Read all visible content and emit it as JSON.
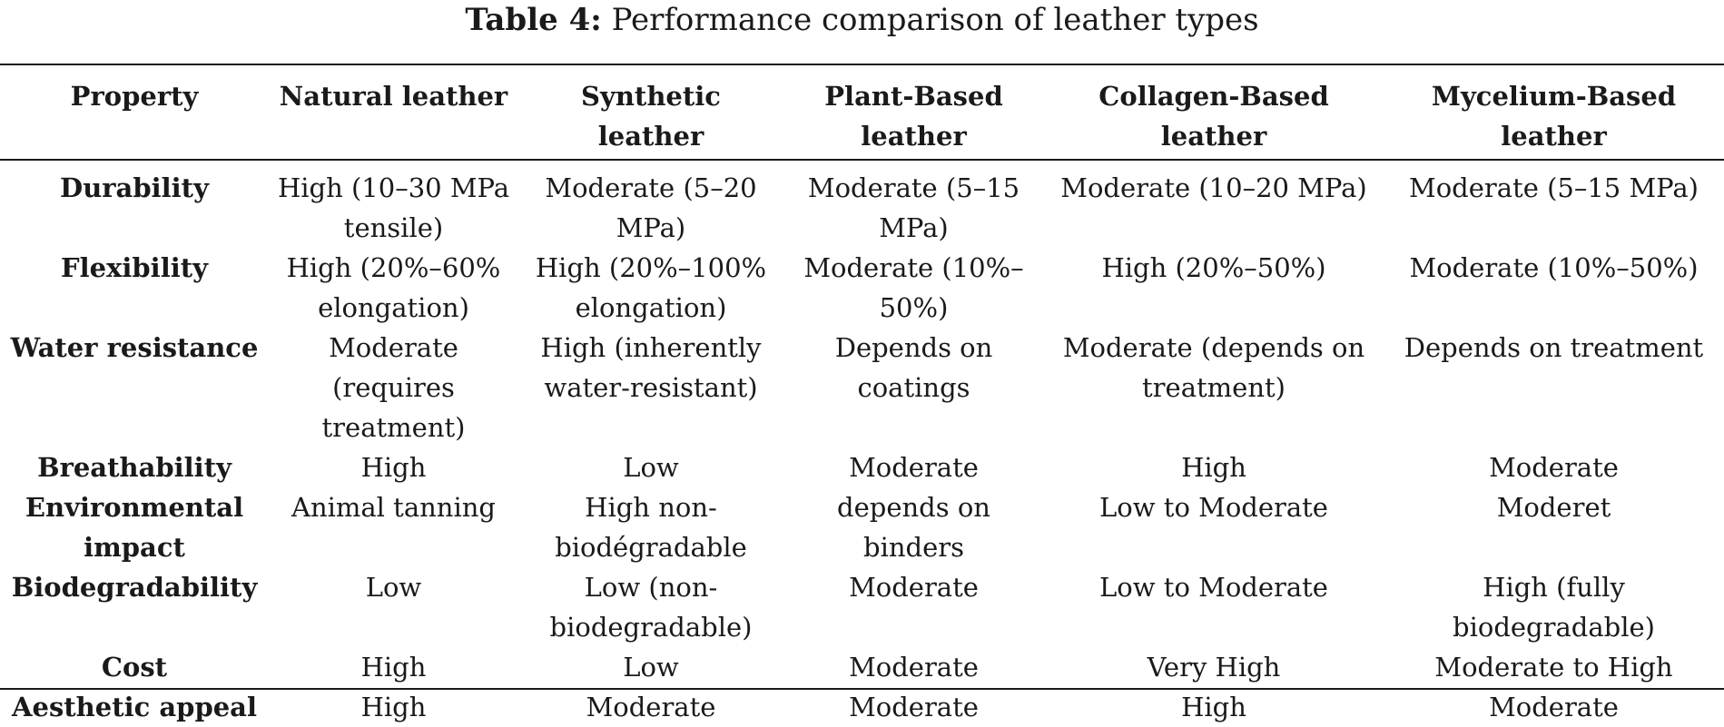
{
  "caption": {
    "label": "Table 4:",
    "text": "Performance comparison of leather types"
  },
  "table": {
    "headers": [
      "Property",
      "Natural leather",
      "Synthetic leather",
      "Plant-Based leather",
      "Collagen-Based leather",
      "Mycelium-Based leather"
    ],
    "rows": [
      [
        "Durability",
        "High (10–30 MPa tensile)",
        "Moderate (5–20 MPa)",
        "Moderate (5–15 MPa)",
        "Moderate (10–20 MPa)",
        "Moderate (5–15 MPa)"
      ],
      [
        "Flexibility",
        "High (20%–60% elongation)",
        "High (20%–100% elongation)",
        "Moderate (10%–50%)",
        "High (20%–50%)",
        "Moderate (10%–50%)"
      ],
      [
        "Water resistance",
        "Moderate (requires treatment)",
        "High (inherently water-resistant)",
        "Depends on coatings",
        "Moderate (depends on treatment)",
        "Depends on treatment"
      ],
      [
        "Breathability",
        "High",
        "Low",
        "Moderate",
        "High",
        "Moderate"
      ],
      [
        "Environmental impact",
        "Animal tanning",
        "High non-biodégradable",
        "depends on binders",
        "Low to Moderate",
        "Moderet"
      ],
      [
        "Biodegradability",
        "Low",
        "Low (non-biodegradable)",
        "Moderate",
        "Low to Moderate",
        "High (fully biodegradable)"
      ],
      [
        "Cost",
        "High",
        "Low",
        "Moderate",
        "Very High",
        "Moderate to High"
      ],
      [
        "Aesthetic appeal",
        "High",
        "Moderate",
        "Moderate",
        "High",
        "Moderate"
      ]
    ]
  }
}
